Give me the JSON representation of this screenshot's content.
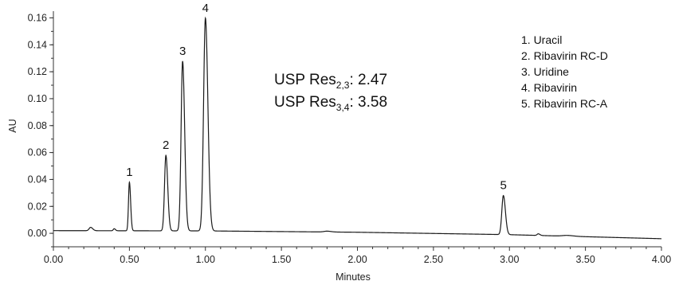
{
  "chart_data": {
    "type": "line",
    "xlabel": "Minutes",
    "ylabel": "AU",
    "xlim": [
      0,
      4.0
    ],
    "ylim": [
      -0.01,
      0.165
    ],
    "grid": false,
    "x_ticks": [
      "0.00",
      "0.50",
      "1.00",
      "1.50",
      "2.00",
      "2.50",
      "3.00",
      "3.50",
      "4.00"
    ],
    "y_ticks": [
      "0.00",
      "0.02",
      "0.04",
      "0.06",
      "0.08",
      "0.10",
      "0.12",
      "0.14",
      "0.16"
    ],
    "baseline": [
      {
        "x": 0.0,
        "y": 0.002
      },
      {
        "x": 1.0,
        "y": 0.0018
      },
      {
        "x": 2.0,
        "y": 0.0008
      },
      {
        "x": 3.0,
        "y": -0.001
      },
      {
        "x": 4.0,
        "y": -0.004
      }
    ],
    "peaks": [
      {
        "label": "1",
        "rt": 0.5,
        "height": 0.036,
        "width": 0.006
      },
      {
        "label": "2",
        "rt": 0.74,
        "height": 0.056,
        "width": 0.009
      },
      {
        "label": "3",
        "rt": 0.85,
        "height": 0.126,
        "width": 0.01
      },
      {
        "label": "4",
        "rt": 1.0,
        "height": 0.158,
        "width": 0.012
      },
      {
        "label": "5",
        "rt": 2.96,
        "height": 0.029,
        "width": 0.01
      }
    ],
    "minor_peaks": [
      {
        "rt": 0.245,
        "height": 0.0025,
        "width": 0.01
      },
      {
        "rt": 0.4,
        "height": 0.0015,
        "width": 0.006
      },
      {
        "rt": 1.8,
        "height": 0.0006,
        "width": 0.02
      },
      {
        "rt": 3.19,
        "height": 0.0012,
        "width": 0.008
      },
      {
        "rt": 3.38,
        "height": 0.0006,
        "width": 0.03
      }
    ],
    "annotations": [
      {
        "prefix": "USP Res",
        "sub": "2,3",
        "value": ": 2.47"
      },
      {
        "prefix": "USP Res",
        "sub": "3,4",
        "value": ": 3.58"
      }
    ],
    "legend": {
      "position": "top-right",
      "entries": [
        "1.  Uracil",
        "2.  Ribavirin RC-D",
        "3.  Uridine",
        "4.  Ribavirin",
        "5.  Ribavirin RC-A"
      ]
    },
    "colors": {
      "trace": "#1a1a1a",
      "axis": "#333333"
    }
  }
}
